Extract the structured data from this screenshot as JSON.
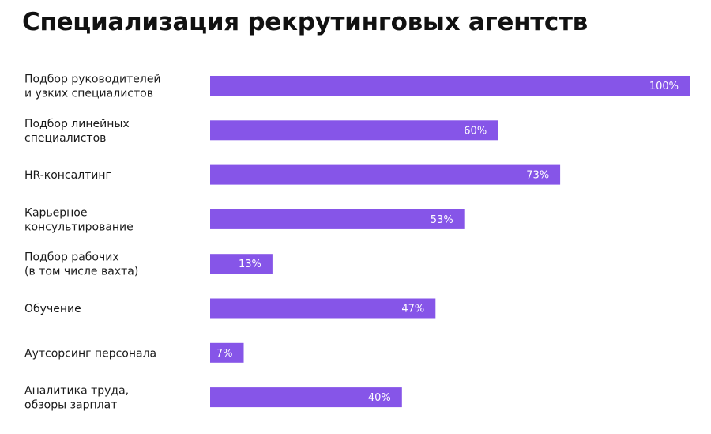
{
  "chart_data": {
    "type": "bar",
    "orientation": "horizontal",
    "title": "Специализация рекрутинговых агентств",
    "categories": [
      [
        "Подбор руководителей",
        "и узких специалистов"
      ],
      [
        "Подбор линейных",
        "специалистов"
      ],
      [
        "HR-консалтинг"
      ],
      [
        "Карьерное",
        "консультирование"
      ],
      [
        "Подбор рабочих",
        "(в том числе вахта)"
      ],
      [
        "Обучение"
      ],
      [
        "Аутсорсинг персонала"
      ],
      [
        "Аналитика труда,",
        "обзоры зарплат"
      ]
    ],
    "values": [
      100,
      60,
      73,
      53,
      13,
      47,
      7,
      40
    ],
    "value_labels": [
      "100%",
      "60%",
      "73%",
      "53%",
      "13%",
      "47%",
      "7%",
      "40%"
    ],
    "value_unit": "%",
    "xlim": [
      0,
      100
    ],
    "grid": false,
    "bar_color": "#8655e8"
  }
}
